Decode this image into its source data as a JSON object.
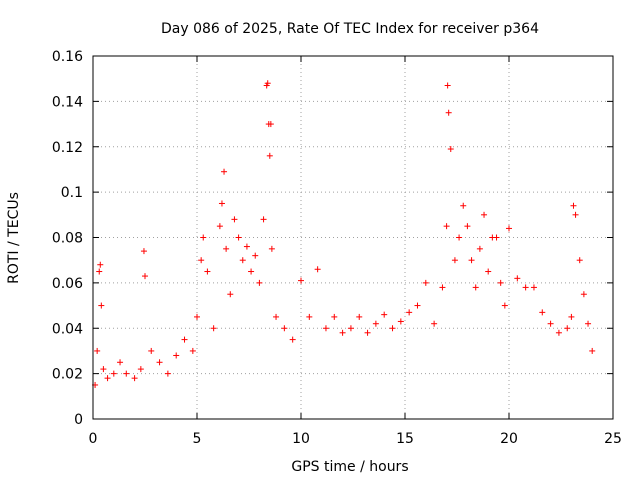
{
  "chart_data": {
    "type": "scatter",
    "title": "Day 086 of 2025, Rate Of TEC Index for receiver p364",
    "xlabel": "GPS time / hours",
    "ylabel": "ROTI / TECUs",
    "xlim": [
      0,
      25
    ],
    "ylim": [
      0,
      0.16
    ],
    "xticks": [
      0,
      5,
      10,
      15,
      20,
      25
    ],
    "xtick_labels": [
      "0",
      "5",
      "10",
      "15",
      "20",
      "25"
    ],
    "yticks": [
      0,
      0.02,
      0.04,
      0.06,
      0.08,
      0.1,
      0.12,
      0.14,
      0.16
    ],
    "ytick_labels": [
      "0",
      "0.02",
      "0.04",
      "0.06",
      "0.08",
      "0.1",
      "0.12",
      "0.14",
      "0.16"
    ],
    "grid": true,
    "marker": "+",
    "color": "#ff0000",
    "series": [
      {
        "name": "ROTI",
        "x": [
          0.1,
          0.2,
          0.3,
          0.35,
          0.4,
          0.5,
          0.7,
          1.0,
          1.3,
          1.6,
          2.0,
          2.3,
          2.45,
          2.5,
          2.8,
          3.2,
          3.6,
          4.0,
          4.4,
          4.8,
          5.0,
          5.2,
          5.3,
          5.5,
          5.8,
          6.1,
          6.2,
          6.3,
          6.4,
          6.6,
          6.8,
          7.0,
          7.2,
          7.4,
          7.6,
          7.8,
          8.0,
          8.2,
          8.35,
          8.4,
          8.45,
          8.5,
          8.55,
          8.6,
          8.8,
          9.2,
          9.6,
          10.0,
          10.4,
          10.8,
          11.2,
          11.6,
          12.0,
          12.4,
          12.8,
          13.2,
          13.6,
          14.0,
          14.4,
          14.8,
          15.2,
          15.6,
          16.0,
          16.4,
          16.8,
          17.0,
          17.05,
          17.1,
          17.2,
          17.4,
          17.6,
          17.8,
          18.0,
          18.2,
          18.4,
          18.6,
          18.8,
          19.0,
          19.2,
          19.4,
          19.6,
          19.8,
          20.0,
          20.4,
          20.8,
          21.2,
          21.6,
          22.0,
          22.4,
          22.8,
          23.0,
          23.1,
          23.2,
          23.4,
          23.6,
          23.8,
          24.0
        ],
        "y": [
          0.015,
          0.03,
          0.065,
          0.068,
          0.05,
          0.022,
          0.018,
          0.02,
          0.025,
          0.02,
          0.018,
          0.022,
          0.074,
          0.063,
          0.03,
          0.025,
          0.02,
          0.028,
          0.035,
          0.03,
          0.045,
          0.07,
          0.08,
          0.065,
          0.04,
          0.085,
          0.095,
          0.109,
          0.075,
          0.055,
          0.088,
          0.08,
          0.07,
          0.076,
          0.065,
          0.072,
          0.06,
          0.088,
          0.147,
          0.148,
          0.13,
          0.116,
          0.13,
          0.075,
          0.045,
          0.04,
          0.035,
          0.061,
          0.045,
          0.066,
          0.04,
          0.045,
          0.038,
          0.04,
          0.045,
          0.038,
          0.042,
          0.046,
          0.04,
          0.043,
          0.047,
          0.05,
          0.06,
          0.042,
          0.058,
          0.085,
          0.147,
          0.135,
          0.119,
          0.07,
          0.08,
          0.094,
          0.085,
          0.07,
          0.058,
          0.075,
          0.09,
          0.065,
          0.08,
          0.08,
          0.06,
          0.05,
          0.084,
          0.062,
          0.058,
          0.058,
          0.047,
          0.042,
          0.038,
          0.04,
          0.045,
          0.094,
          0.09,
          0.07,
          0.055,
          0.042,
          0.03
        ]
      }
    ]
  }
}
